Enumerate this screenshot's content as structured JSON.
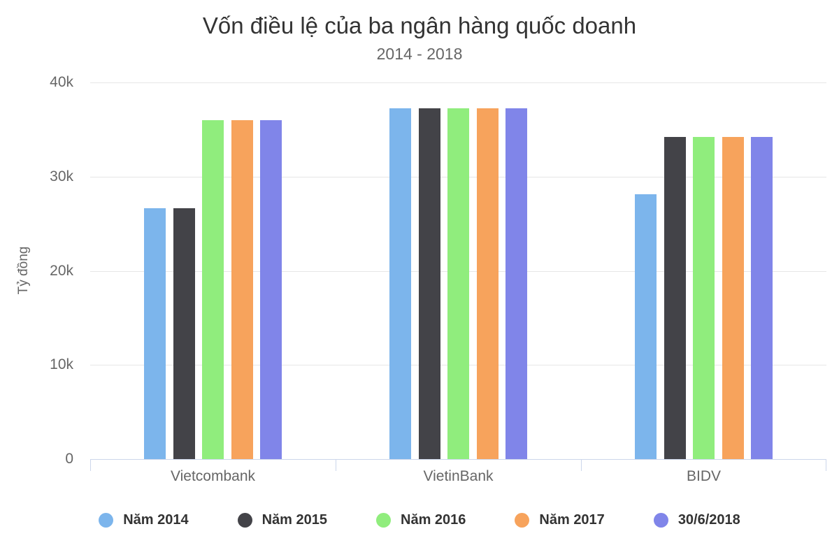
{
  "chart_data": {
    "type": "bar",
    "title": "Vốn điều lệ của ba ngân hàng quốc doanh",
    "subtitle": "2014 - 2018",
    "ylabel": "Tỷ đồng",
    "xlabel": "",
    "categories": [
      "Vietcombank",
      "VietinBank",
      "BIDV"
    ],
    "series": [
      {
        "name": "Năm 2014",
        "color": "#7cb5ec",
        "values": [
          26650,
          37234,
          28112
        ]
      },
      {
        "name": "Năm 2015",
        "color": "#434348",
        "values": [
          26650,
          37234,
          34187
        ]
      },
      {
        "name": "Năm 2016",
        "color": "#90ed7d",
        "values": [
          35978,
          37234,
          34187
        ]
      },
      {
        "name": "Năm 2017",
        "color": "#f7a35c",
        "values": [
          35978,
          37234,
          34187
        ]
      },
      {
        "name": "30/6/2018",
        "color": "#8085e9",
        "values": [
          35978,
          37234,
          34187
        ]
      }
    ],
    "ylim": [
      0,
      40000
    ],
    "ytick_values": [
      0,
      10000,
      20000,
      30000,
      40000
    ],
    "ytick_labels": [
      "0",
      "10k",
      "20k",
      "30k",
      "40k"
    ],
    "grid": true,
    "legend_position": "bottom"
  },
  "theme": {
    "background": "#ffffff",
    "title_color": "#333333",
    "subtitle_color": "#666666",
    "axis_label_color": "#666666",
    "legend_text_color": "#333333",
    "grid_color": "#e6e6e6",
    "axis_line_color": "#ccd6eb"
  }
}
